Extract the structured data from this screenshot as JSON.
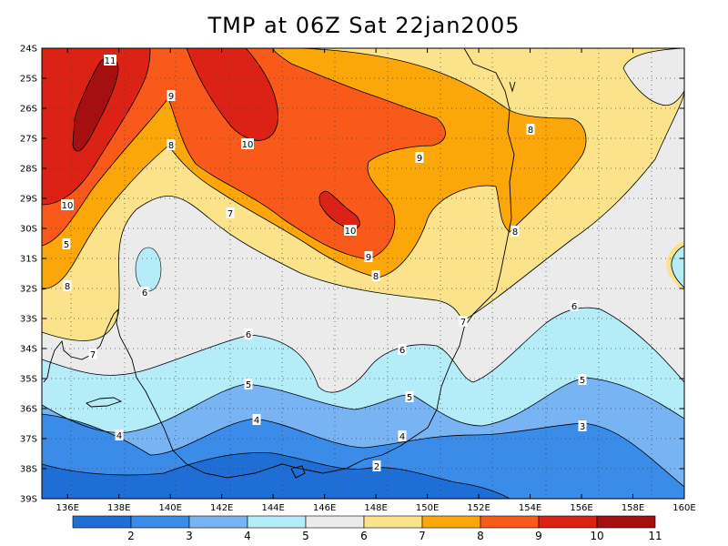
{
  "title": "TMP at 06Z Sat 22jan2005",
  "lat_ticks": [
    "24S",
    "25S",
    "26S",
    "27S",
    "28S",
    "29S",
    "30S",
    "31S",
    "32S",
    "33S",
    "34S",
    "35S",
    "36S",
    "37S",
    "38S",
    "39S"
  ],
  "lon_ticks": [
    "136E",
    "138E",
    "140E",
    "142E",
    "144E",
    "146E",
    "148E",
    "150E",
    "152E",
    "154E",
    "156E",
    "158E",
    "160E"
  ],
  "contour_labels": [
    {
      "text": "11"
    },
    {
      "text": "9"
    },
    {
      "text": "8"
    },
    {
      "text": "10"
    },
    {
      "text": "10"
    },
    {
      "text": "9"
    },
    {
      "text": "8"
    },
    {
      "text": "7"
    },
    {
      "text": "10"
    },
    {
      "text": "9"
    },
    {
      "text": "8"
    },
    {
      "text": "8"
    },
    {
      "text": "7"
    },
    {
      "text": "6"
    },
    {
      "text": "8"
    },
    {
      "text": "7"
    },
    {
      "text": "6"
    },
    {
      "text": "6"
    },
    {
      "text": "6"
    },
    {
      "text": "5"
    },
    {
      "text": "5"
    },
    {
      "text": "5"
    },
    {
      "text": "5"
    },
    {
      "text": "4"
    },
    {
      "text": "4"
    },
    {
      "text": "4"
    },
    {
      "text": "3"
    },
    {
      "text": "2"
    }
  ],
  "colorbar": {
    "labels": [
      "2",
      "3",
      "4",
      "5",
      "6",
      "7",
      "8",
      "9",
      "10",
      "11"
    ],
    "colors": [
      "#1e6ed6",
      "#3a8ce8",
      "#78b4f4",
      "#b4ecf8",
      "#ebebeb",
      "#fae38a",
      "#fba70a",
      "#f95a19",
      "#dc2115",
      "#a50f0f"
    ]
  },
  "colors": {
    "band_11": "#a50f0f",
    "band_10": "#dc2115",
    "band_9": "#f95a19",
    "band_8": "#fba70a",
    "band_7": "#fae38a",
    "band_6": "#ebebeb",
    "band_5": "#b4ecf8",
    "band_4": "#78b4f4",
    "band_3": "#3a8ce8",
    "band_2": "#1e6ed6"
  }
}
